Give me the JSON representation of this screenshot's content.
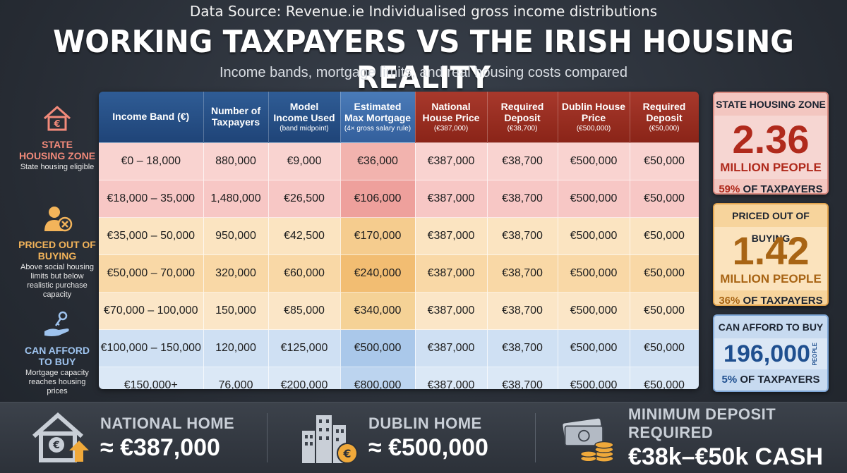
{
  "header": {
    "source": "Data Source: Revenue.ie Individualised gross income distributions",
    "title": "WORKING TAXPAYERS VS THE IRISH HOUSING REALITY",
    "subtitle": "Income bands, mortgage limits, and real housing costs compared"
  },
  "sidebar": {
    "zones": [
      {
        "label": "STATE HOUSING ZONE",
        "desc": "State housing eligible",
        "icon": "house-euro-icon"
      },
      {
        "label": "PRICED OUT OF BUYING",
        "desc": "Above social housing limits but below realistic purchase capacity",
        "icon": "person-cross-icon"
      },
      {
        "label": "CAN AFFORD TO BUY",
        "desc": "Mortgage capacity reaches housing prices",
        "icon": "hand-key-icon"
      }
    ]
  },
  "table": {
    "headers": [
      {
        "label": "Income Band (€)",
        "sub": ""
      },
      {
        "label": "Number of Taxpayers",
        "sub": ""
      },
      {
        "label": "Model Income Used",
        "sub": "(band midpoint)"
      },
      {
        "label": "Estimated Max Mortgage",
        "sub": "(4× gross salary rule)"
      },
      {
        "label": "National House Price",
        "sub": "(€387,000)"
      },
      {
        "label": "Required Deposit",
        "sub": "(€38,700)"
      },
      {
        "label": "Dublin House Price",
        "sub": "(€500,000)"
      },
      {
        "label": "Required Deposit",
        "sub": "(€50,000)"
      }
    ],
    "rows": [
      [
        "€0 – 18,000",
        "880,000",
        "€9,000",
        "€36,000",
        "€387,000",
        "€38,700",
        "€500,000",
        "€50,000"
      ],
      [
        "€18,000 – 35,000",
        "1,480,000",
        "€26,500",
        "€106,000",
        "€387,000",
        "€38,700",
        "€500,000",
        "€50,000"
      ],
      [
        "€35,000 – 50,000",
        "950,000",
        "€42,500",
        "€170,000",
        "€387,000",
        "€38,700",
        "€500,000",
        "€50,000"
      ],
      [
        "€50,000 – 70,000",
        "320,000",
        "€60,000",
        "€240,000",
        "€387,000",
        "€38,700",
        "€500,000",
        "€50,000"
      ],
      [
        "€70,000 – 100,000",
        "150,000",
        "€85,000",
        "€340,000",
        "€387,000",
        "€38,700",
        "€500,000",
        "€50,000"
      ],
      [
        "€100,000 – 150,000",
        "120,000",
        "€125,000",
        "€500,000",
        "€387,000",
        "€38,700",
        "€500,000",
        "€50,000"
      ],
      [
        "€150,000+",
        "76,000",
        "€200,000",
        "€800,000",
        "€387,000",
        "€38,700",
        "€500,000",
        "€50,000"
      ]
    ]
  },
  "cards": [
    {
      "header": "STATE HOUSING ZONE",
      "value": "2.36",
      "unit": "MILLION PEOPLE",
      "pct": "59%",
      "pct_label": "OF TAXPAYERS"
    },
    {
      "header": "PRICED OUT OF BUYING",
      "value": "1.42",
      "unit": "MILLION PEOPLE",
      "pct": "36%",
      "pct_label": "OF TAXPAYERS"
    },
    {
      "header": "CAN AFFORD TO BUY",
      "value": "196,000",
      "unit": "PEOPLE",
      "pct": "5%",
      "pct_label": "OF TAXPAYERS"
    }
  ],
  "footer": [
    {
      "label": "NATIONAL HOME",
      "value": "≈ €387,000",
      "icon": "house-euro-up-icon"
    },
    {
      "label": "DUBLIN HOME",
      "value": "≈ €500,000",
      "icon": "city-buildings-euro-icon"
    },
    {
      "label": "MINIMUM DEPOSIT REQUIRED",
      "value": "€38k–€50k CASH",
      "icon": "cash-coins-icon"
    }
  ]
}
